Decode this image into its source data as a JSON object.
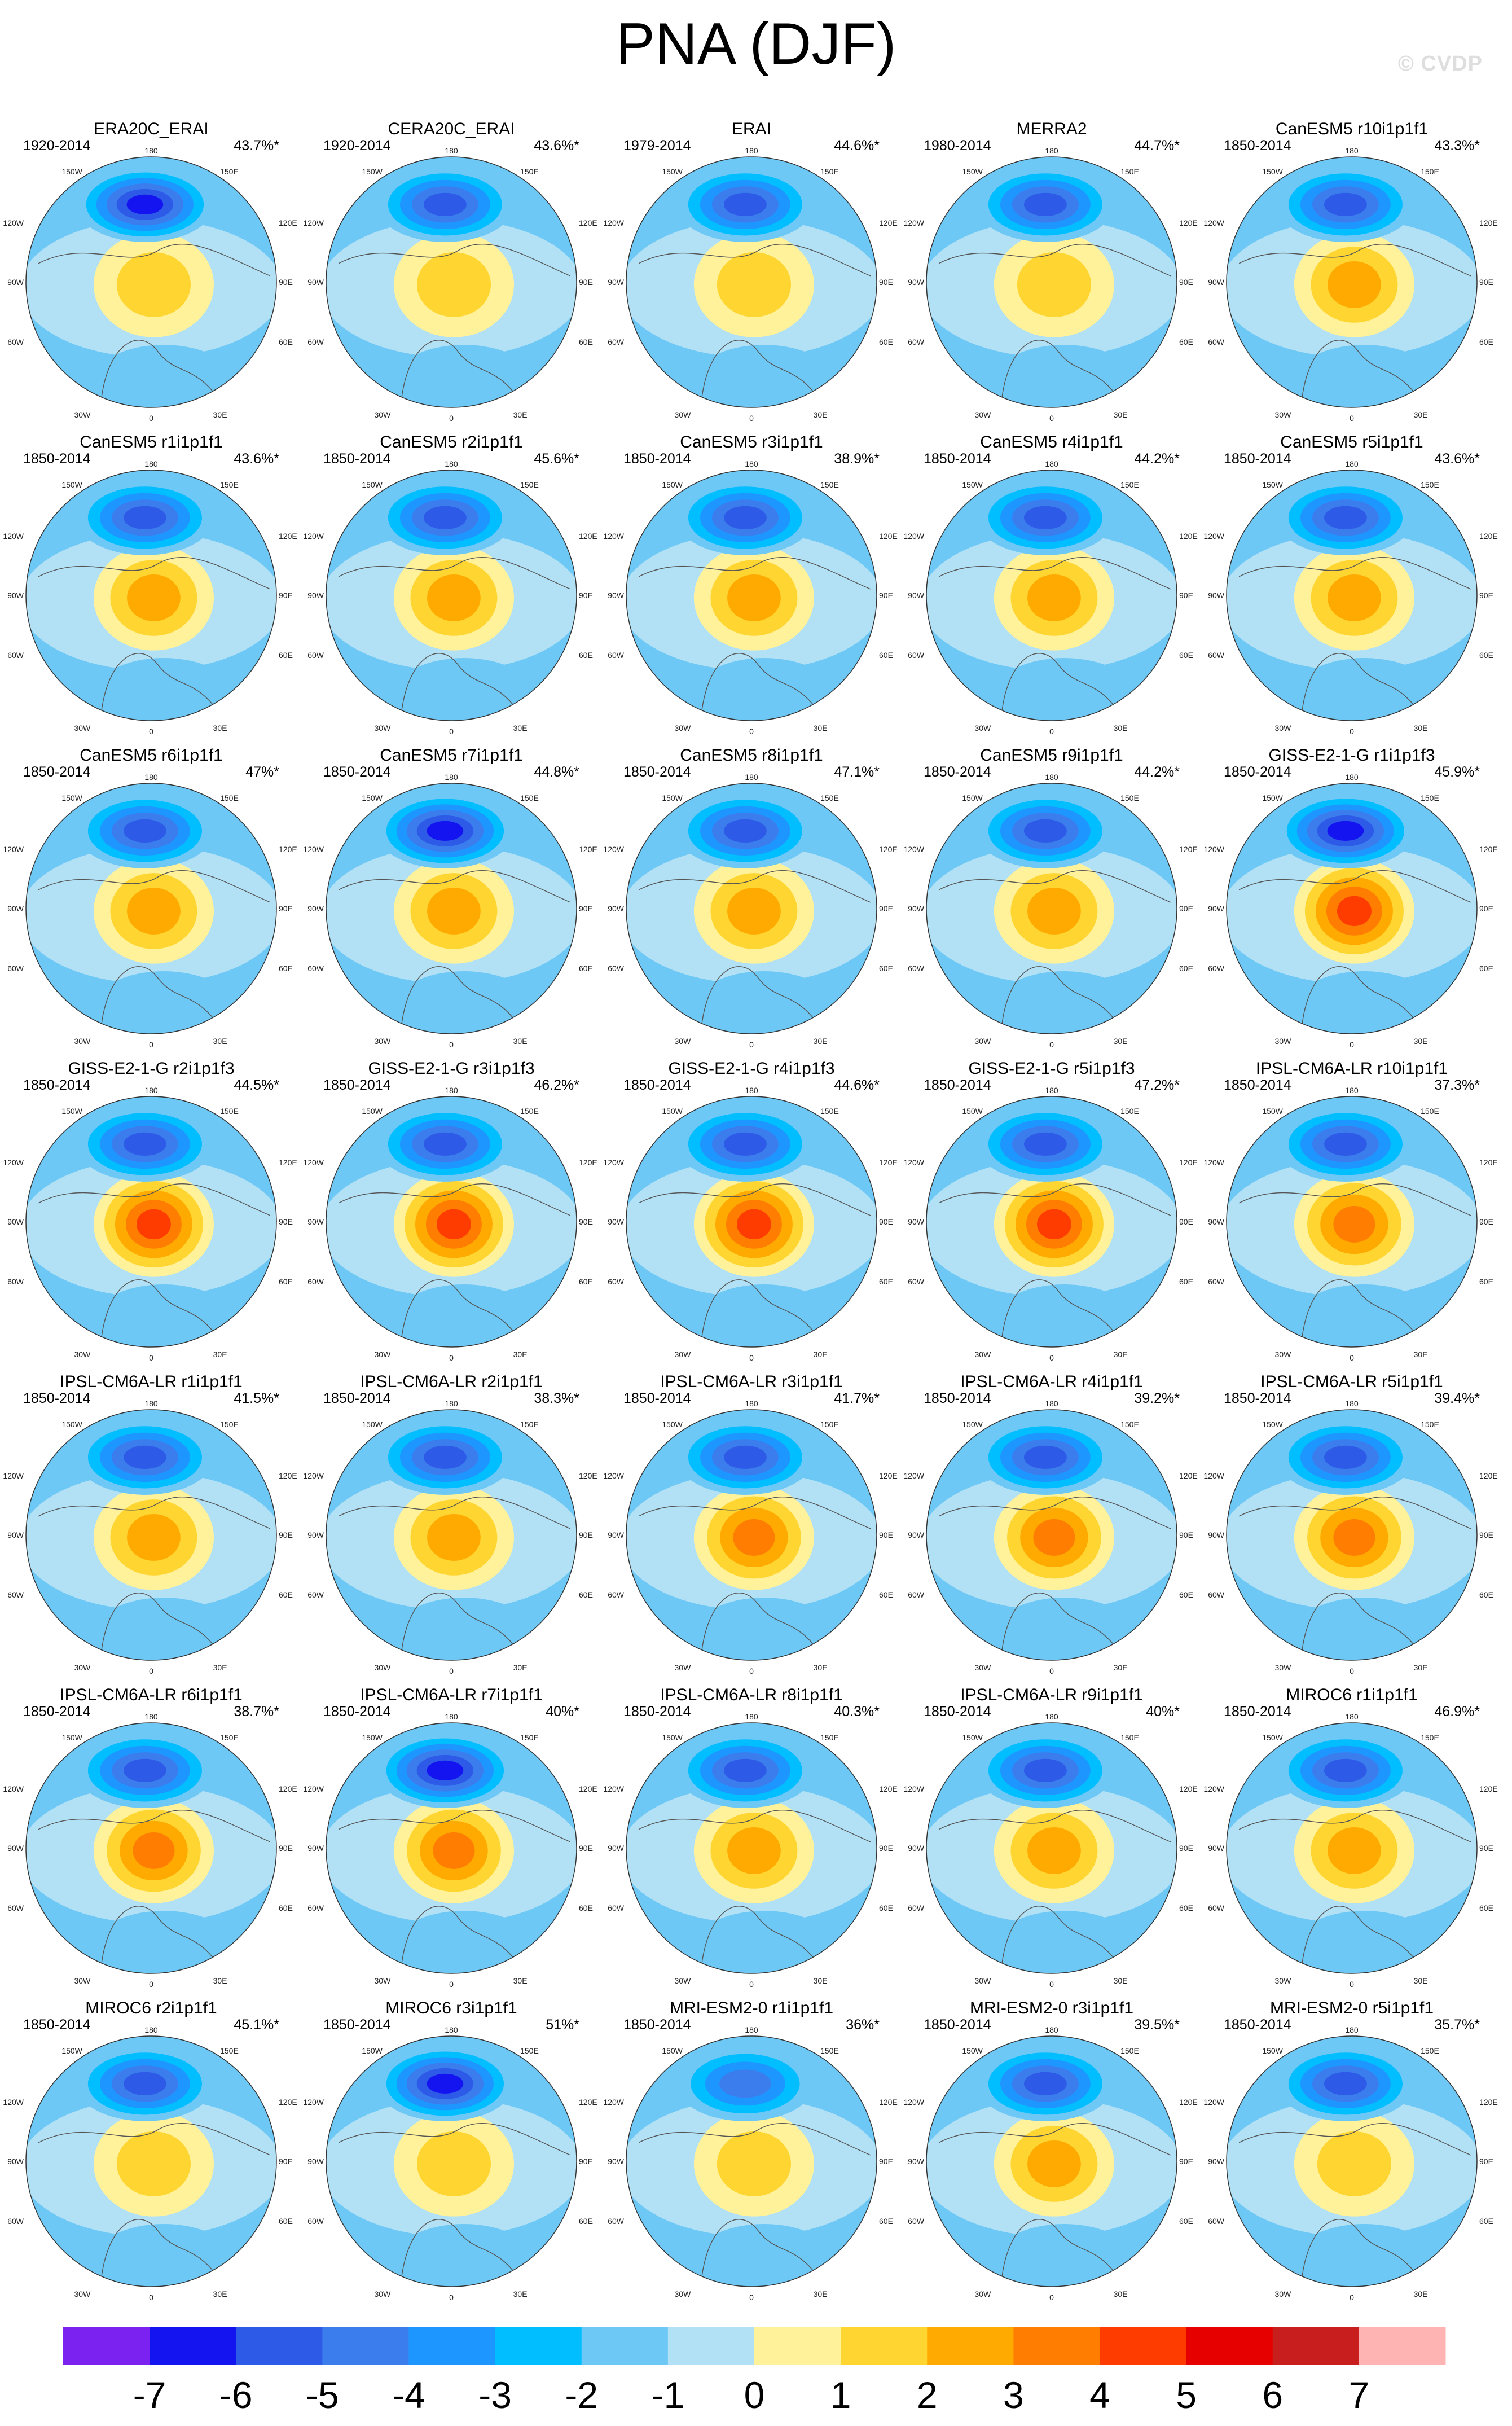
{
  "header": {
    "title": "PNA (DJF)",
    "watermark": "© CVDP"
  },
  "chart_data": {
    "type": "contour-map-grid",
    "title": "PNA (DJF)",
    "layout": {
      "rows": 7,
      "cols": 5
    },
    "panels": [
      {
        "name": "ERA20C_ERAI",
        "period": "1920-2014",
        "pct": "43.7%*",
        "neg": 5.5,
        "pos": 2.0
      },
      {
        "name": "CERA20C_ERAI",
        "period": "1920-2014",
        "pct": "43.6%*",
        "neg": 5.0,
        "pos": 1.8
      },
      {
        "name": "ERAI",
        "period": "1979-2014",
        "pct": "44.6%*",
        "neg": 4.5,
        "pos": 1.8
      },
      {
        "name": "MERRA2",
        "period": "1980-2014",
        "pct": "44.7%*",
        "neg": 4.5,
        "pos": 2.2
      },
      {
        "name": "CanESM5 r10i1p1f1",
        "period": "1850-2014",
        "pct": "43.3%*",
        "neg": 4.5,
        "pos": 3.0
      },
      {
        "name": "CanESM5 r1i1p1f1",
        "period": "1850-2014",
        "pct": "43.6%*",
        "neg": 4.5,
        "pos": 3.0
      },
      {
        "name": "CanESM5 r2i1p1f1",
        "period": "1850-2014",
        "pct": "45.6%*",
        "neg": 5.0,
        "pos": 3.0
      },
      {
        "name": "CanESM5 r3i1p1f1",
        "period": "1850-2014",
        "pct": "38.9%*",
        "neg": 4.5,
        "pos": 3.0
      },
      {
        "name": "CanESM5 r4i1p1f1",
        "period": "1850-2014",
        "pct": "44.2%*",
        "neg": 4.5,
        "pos": 3.0
      },
      {
        "name": "CanESM5 r5i1p1f1",
        "period": "1850-2014",
        "pct": "43.6%*",
        "neg": 4.5,
        "pos": 3.0
      },
      {
        "name": "CanESM5 r6i1p1f1",
        "period": "1850-2014",
        "pct": "47%*",
        "neg": 5.0,
        "pos": 3.0
      },
      {
        "name": "CanESM5 r7i1p1f1",
        "period": "1850-2014",
        "pct": "44.8%*",
        "neg": 5.5,
        "pos": 3.0
      },
      {
        "name": "CanESM5 r8i1p1f1",
        "period": "1850-2014",
        "pct": "47.1%*",
        "neg": 5.0,
        "pos": 3.0
      },
      {
        "name": "CanESM5 r9i1p1f1",
        "period": "1850-2014",
        "pct": "44.2%*",
        "neg": 4.5,
        "pos": 3.0
      },
      {
        "name": "GISS-E2-1-G r1i1p1f3",
        "period": "1850-2014",
        "pct": "45.9%*",
        "neg": 5.5,
        "pos": 4.5
      },
      {
        "name": "GISS-E2-1-G r2i1p1f3",
        "period": "1850-2014",
        "pct": "44.5%*",
        "neg": 4.5,
        "pos": 4.5
      },
      {
        "name": "GISS-E2-1-G r3i1p1f3",
        "period": "1850-2014",
        "pct": "46.2%*",
        "neg": 5.0,
        "pos": 4.5
      },
      {
        "name": "GISS-E2-1-G r4i1p1f3",
        "period": "1850-2014",
        "pct": "44.6%*",
        "neg": 4.5,
        "pos": 4.5
      },
      {
        "name": "GISS-E2-1-G r5i1p1f3",
        "period": "1850-2014",
        "pct": "47.2%*",
        "neg": 5.0,
        "pos": 5.0
      },
      {
        "name": "IPSL-CM6A-LR r10i1p1f1",
        "period": "1850-2014",
        "pct": "37.3%*",
        "neg": 4.5,
        "pos": 3.5
      },
      {
        "name": "IPSL-CM6A-LR r1i1p1f1",
        "period": "1850-2014",
        "pct": "41.5%*",
        "neg": 4.5,
        "pos": 3.0
      },
      {
        "name": "IPSL-CM6A-LR r2i1p1f1",
        "period": "1850-2014",
        "pct": "38.3%*",
        "neg": 4.5,
        "pos": 3.0
      },
      {
        "name": "IPSL-CM6A-LR r3i1p1f1",
        "period": "1850-2014",
        "pct": "41.7%*",
        "neg": 4.5,
        "pos": 3.5
      },
      {
        "name": "IPSL-CM6A-LR r4i1p1f1",
        "period": "1850-2014",
        "pct": "39.2%*",
        "neg": 4.5,
        "pos": 3.5
      },
      {
        "name": "IPSL-CM6A-LR r5i1p1f1",
        "period": "1850-2014",
        "pct": "39.4%*",
        "neg": 4.5,
        "pos": 3.5
      },
      {
        "name": "IPSL-CM6A-LR r6i1p1f1",
        "period": "1850-2014",
        "pct": "38.7%*",
        "neg": 4.5,
        "pos": 3.5
      },
      {
        "name": "IPSL-CM6A-LR r7i1p1f1",
        "period": "1850-2014",
        "pct": "40%*",
        "neg": 5.5,
        "pos": 4.0
      },
      {
        "name": "IPSL-CM6A-LR r8i1p1f1",
        "period": "1850-2014",
        "pct": "40.3%*",
        "neg": 4.5,
        "pos": 3.0
      },
      {
        "name": "IPSL-CM6A-LR r9i1p1f1",
        "period": "1850-2014",
        "pct": "40%*",
        "neg": 4.5,
        "pos": 3.0
      },
      {
        "name": "MIROC6 r1i1p1f1",
        "period": "1850-2014",
        "pct": "46.9%*",
        "neg": 4.5,
        "pos": 2.5
      },
      {
        "name": "MIROC6 r2i1p1f1",
        "period": "1850-2014",
        "pct": "45.1%*",
        "neg": 5.0,
        "pos": 2.0
      },
      {
        "name": "MIROC6 r3i1p1f1",
        "period": "1850-2014",
        "pct": "51%*",
        "neg": 5.5,
        "pos": 2.0
      },
      {
        "name": "MRI-ESM2-0 r1i1p1f1",
        "period": "1850-2014",
        "pct": "36%*",
        "neg": 3.5,
        "pos": 1.5
      },
      {
        "name": "MRI-ESM2-0 r3i1p1f1",
        "period": "1850-2014",
        "pct": "39.5%*",
        "neg": 4.5,
        "pos": 2.5
      },
      {
        "name": "MRI-ESM2-0 r5i1p1f1",
        "period": "1850-2014",
        "pct": "35.7%*",
        "neg": 4.5,
        "pos": 2.0
      }
    ],
    "lon_labels": [
      "180",
      "150W",
      "150E",
      "120W",
      "120E",
      "90W",
      "90E",
      "60W",
      "60E",
      "30W",
      "30E",
      "0"
    ],
    "colorbar": {
      "ticks": [
        "-7",
        "-6",
        "-5",
        "-4",
        "-3",
        "-2",
        "-1",
        "0",
        "1",
        "2",
        "3",
        "4",
        "5",
        "6",
        "7"
      ],
      "colors": [
        "#7b22f0",
        "#1414f0",
        "#2d5ae6",
        "#3c7ded",
        "#1e96ff",
        "#00beff",
        "#6ec8f5",
        "#b2e1f5",
        "#fff29a",
        "#ffd532",
        "#ffaa00",
        "#ff7d00",
        "#ff3c00",
        "#e60000",
        "#c81e1e",
        "#ffb4b4"
      ]
    }
  }
}
